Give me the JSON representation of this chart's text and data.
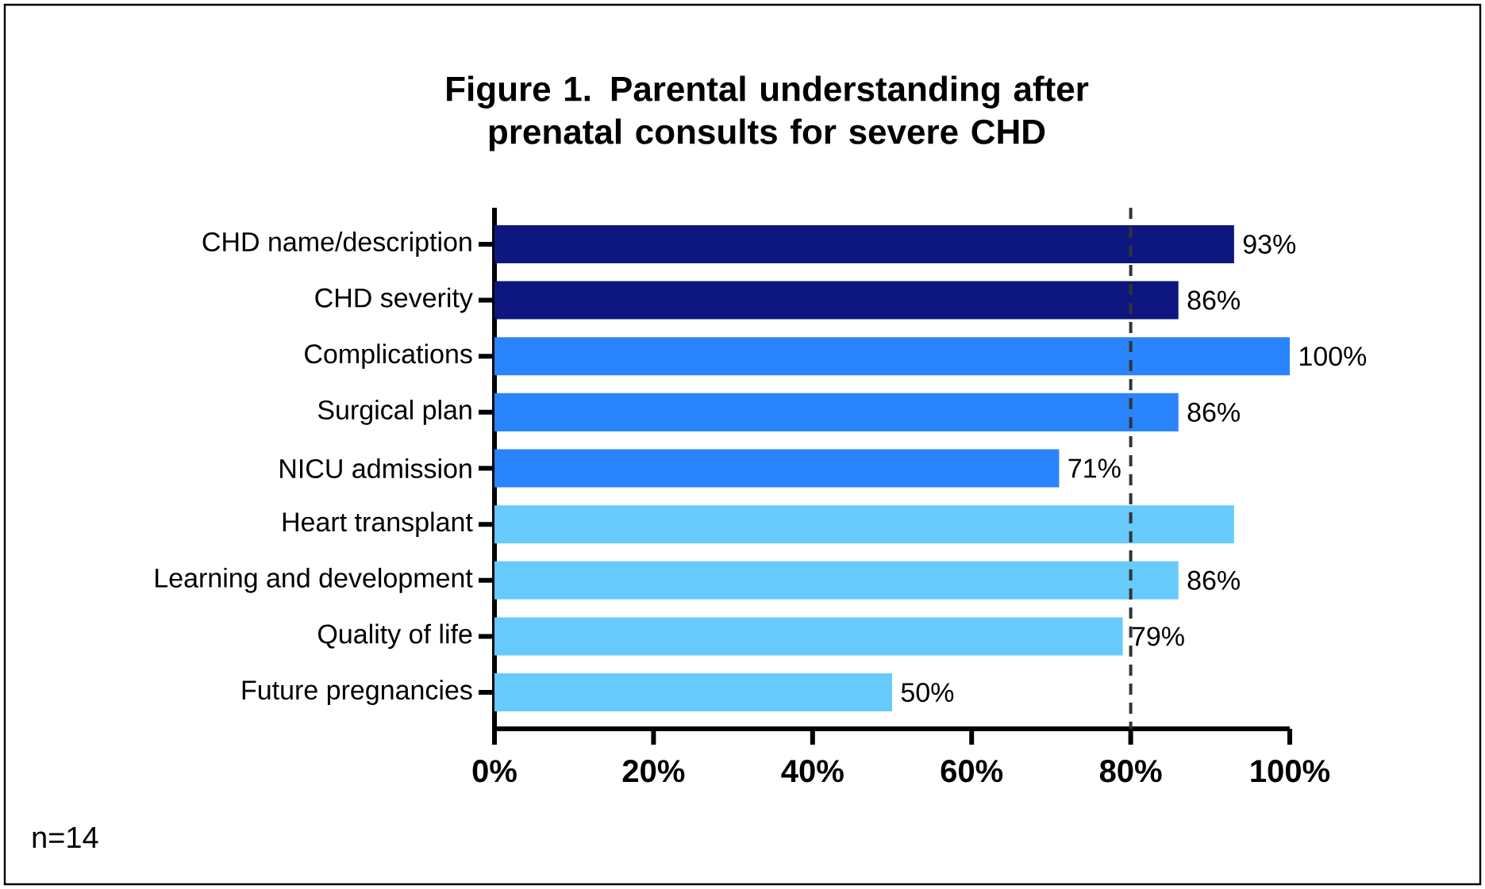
{
  "chart_data": {
    "type": "bar",
    "orientation": "horizontal",
    "title": "Figure 1. Parental understanding after prenatal consults for severe CHD",
    "categories": [
      "CHD name/description",
      "CHD severity",
      "Complications",
      "Surgical plan",
      "NICU admission",
      "Heart transplant",
      "Learning and development",
      "Quality of life",
      "Future pregnancies"
    ],
    "values": [
      93,
      86,
      100,
      86,
      71,
      93,
      86,
      79,
      50
    ],
    "colors": [
      "#0d177f",
      "#0d177f",
      "#2a84fc",
      "#2a84fc",
      "#2a84fc",
      "#66cbfb",
      "#66cbfb",
      "#66cbfb",
      "#66cbfb"
    ],
    "value_labels": [
      "93%",
      "86%",
      "100%",
      "86%",
      "71%",
      null,
      "86%",
      "79%",
      "50%"
    ],
    "xlim": [
      0,
      100
    ],
    "xticks": [
      {
        "value": 0,
        "label": "0%"
      },
      {
        "value": 20,
        "label": "20%"
      },
      {
        "value": 40,
        "label": "40%"
      },
      {
        "value": 60,
        "label": "60%"
      },
      {
        "value": 80,
        "label": "80%"
      },
      {
        "value": 100,
        "label": "100%"
      }
    ],
    "ref_lines": [
      {
        "axis": "x",
        "value": 80,
        "color": "#333333",
        "line_style": "dashed"
      }
    ],
    "annotations": [
      "n=14"
    ],
    "grid": false
  }
}
